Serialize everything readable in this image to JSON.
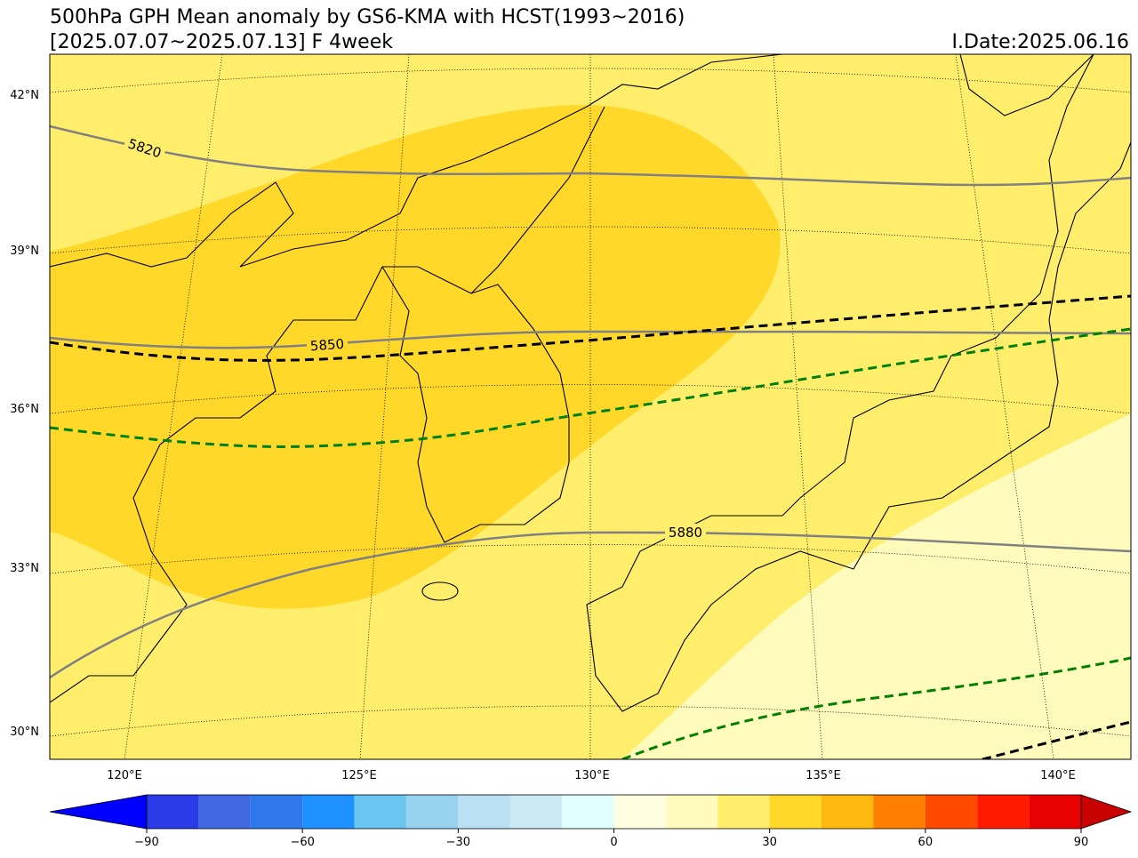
{
  "title": "500hPa GPH Mean anomaly by GS6-KMA with HCST(1993~2016)",
  "subtitle": "[2025.07.07~2025.07.13] F 4week",
  "init_date": "I.Date:2025.06.16",
  "lat_labels": [
    "42°N",
    "39°N",
    "36°N",
    "33°N",
    "30°N"
  ],
  "lon_labels": [
    "120°E",
    "125°E",
    "130°E",
    "135°E",
    "140°E"
  ],
  "contour_labels": [
    "5820",
    "5850",
    "5880"
  ],
  "colorbar": {
    "bounds": [
      -90,
      -80,
      -70,
      -60,
      -50,
      -40,
      -30,
      -20,
      -10,
      0,
      10,
      20,
      30,
      40,
      50,
      60,
      70,
      80,
      90
    ],
    "colors": [
      "#2a3ce8",
      "#4169e1",
      "#2f78ec",
      "#1e90ff",
      "#6ac6f0",
      "#97d3ee",
      "#b9e1f3",
      "#cae9f3",
      "#e0ffff",
      "#fffee0",
      "#fffbbc",
      "#ffee6b",
      "#ffd82a",
      "#ffb80f",
      "#ff7f00",
      "#ff4800",
      "#ff1a00",
      "#e80000"
    ],
    "under_color": "#0000ff",
    "over_color": "#c80000",
    "ticks": [
      {
        "value": -90,
        "label": "−90"
      },
      {
        "value": -60,
        "label": "−60"
      },
      {
        "value": -30,
        "label": "−30"
      },
      0,
      30,
      60,
      90
    ]
  }
}
